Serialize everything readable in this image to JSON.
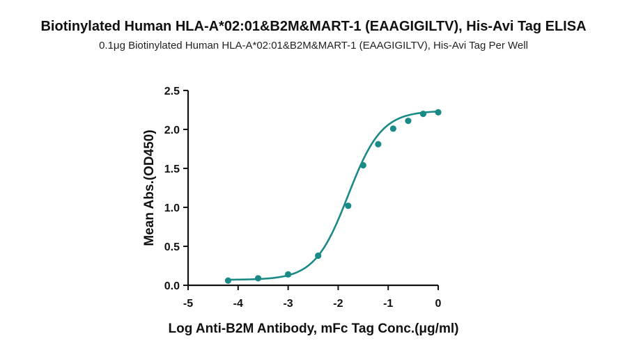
{
  "chart_data": {
    "type": "scatter",
    "title": "Biotinylated Human HLA-A*02:01&B2M&MART-1 (EAAGIGILTV), His-Avi Tag ELISA",
    "subtitle": "0.1μg Biotinylated Human HLA-A*02:01&B2M&MART-1 (EAAGIGILTV), His-Avi Tag Per Well",
    "xlabel": "Log Anti-B2M Antibody, mFc Tag Conc.(μg/ml)",
    "ylabel": "Mean Abs.(OD450)",
    "xlim": [
      -5,
      0
    ],
    "ylim": [
      0,
      2.5
    ],
    "x_ticks": [
      "-5",
      "-4",
      "-3",
      "-2",
      "-1",
      "0"
    ],
    "y_ticks": [
      "0.0",
      "0.5",
      "1.0",
      "1.5",
      "2.0",
      "2.5"
    ],
    "grid": false,
    "color": "#1a8a87",
    "series": [
      {
        "x": [
          -4.2,
          -3.6,
          -3.0,
          -2.4,
          -1.8,
          -1.5,
          -1.2,
          -0.9,
          -0.6,
          -0.3,
          0.0
        ],
        "y": [
          0.06,
          0.09,
          0.14,
          0.38,
          1.02,
          1.54,
          1.81,
          2.01,
          2.11,
          2.2,
          2.22
        ]
      }
    ],
    "fit_curve": {
      "type": "4PL",
      "bottom": 0.07,
      "top": 2.24,
      "logEC50": -1.8,
      "hill": 1.3
    }
  }
}
